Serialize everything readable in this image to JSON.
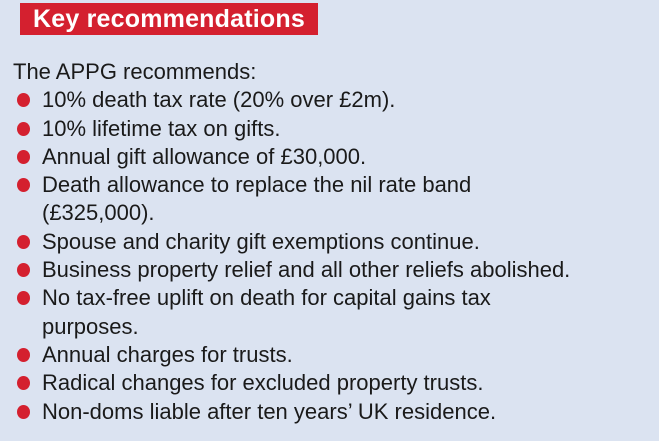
{
  "panel": {
    "title": "Key recommendations",
    "intro": "The APPG recommends:",
    "bullets": [
      "10% death tax rate (20% over £2m).",
      "10% lifetime tax on gifts.",
      "Annual gift allowance of £30,000.",
      "Death allowance to replace the nil rate band\n(£325,000).",
      "Spouse and charity gift exemptions continue.",
      "Business property relief and all other reliefs abolished.",
      "No tax-free uplift on death for capital gains tax\npurposes.",
      "Annual charges for trusts.",
      "Radical changes for excluded property trusts.",
      "Non-doms liable after ten years’ UK residence."
    ],
    "colors": {
      "accent_red": "#d4202f",
      "background": "#dbe3f1",
      "text": "#1a1a1a",
      "title_text": "#ffffff"
    }
  }
}
